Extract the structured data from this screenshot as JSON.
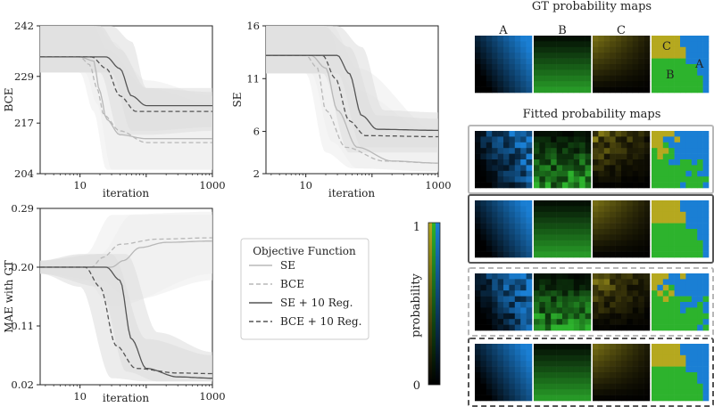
{
  "chart_data": [
    {
      "type": "line",
      "ylabel": "BCE",
      "xlabel": "iteration",
      "xscale": "log",
      "xlim": [
        2.5,
        1000
      ],
      "ylim": [
        204,
        242
      ],
      "yticks": [
        204,
        217,
        229,
        242
      ],
      "xticks": [
        10,
        1000
      ],
      "series": [
        {
          "name": "SE",
          "style": "solid-light",
          "points": [
            [
              2.5,
              234
            ],
            [
              10,
              234
            ],
            [
              16,
              233
            ],
            [
              20,
              225
            ],
            [
              25,
              218
            ],
            [
              40,
              214
            ],
            [
              100,
              213
            ],
            [
              1000,
              213
            ]
          ],
          "band": [
            [
              2.5,
              230,
              242
            ],
            [
              12,
              230,
              242
            ],
            [
              18,
              222,
              242
            ],
            [
              30,
              205,
              238
            ],
            [
              100,
              205,
              228
            ],
            [
              1000,
              205,
              224
            ]
          ]
        },
        {
          "name": "BCE",
          "style": "dashed-light",
          "points": [
            [
              2.5,
              234
            ],
            [
              10,
              234
            ],
            [
              14,
              232
            ],
            [
              18,
              226
            ],
            [
              23,
              219
            ],
            [
              40,
              215
            ],
            [
              100,
              212
            ],
            [
              1000,
              212
            ]
          ],
          "band": [
            [
              2.5,
              230,
              242
            ],
            [
              10,
              230,
              242
            ],
            [
              16,
              220,
              242
            ],
            [
              25,
              205,
              236
            ],
            [
              100,
              205,
              226
            ],
            [
              1000,
              205,
              222
            ]
          ]
        },
        {
          "name": "SE + 10 Reg.",
          "style": "solid-dark",
          "points": [
            [
              2.5,
              234
            ],
            [
              25,
              234
            ],
            [
              40,
              231
            ],
            [
              60,
              224
            ],
            [
              100,
              221.5
            ],
            [
              1000,
              221.5
            ]
          ],
          "band": [
            [
              2.5,
              230,
              242
            ],
            [
              30,
              230,
              242
            ],
            [
              60,
              215,
              238
            ],
            [
              100,
              215,
              226
            ],
            [
              1000,
              216,
              226
            ]
          ]
        },
        {
          "name": "BCE + 10 Reg.",
          "style": "dashed-dark",
          "points": [
            [
              2.5,
              234
            ],
            [
              15,
              234
            ],
            [
              25,
              231
            ],
            [
              40,
              224
            ],
            [
              70,
              220
            ],
            [
              1000,
              220
            ]
          ],
          "band": [
            [
              2.5,
              230,
              242
            ],
            [
              20,
              230,
              242
            ],
            [
              40,
              214,
              236
            ],
            [
              100,
              214,
              226
            ],
            [
              1000,
              215,
              225
            ]
          ]
        }
      ]
    },
    {
      "type": "line",
      "ylabel": "SE",
      "xlabel": "iteration",
      "xscale": "log",
      "xlim": [
        2.5,
        1000
      ],
      "ylim": [
        2,
        16
      ],
      "yticks": [
        2,
        6,
        11,
        16
      ],
      "xticks": [
        10,
        1000
      ],
      "series": [
        {
          "name": "SE",
          "style": "solid-light",
          "points": [
            [
              2.5,
              13.2
            ],
            [
              12,
              13.2
            ],
            [
              20,
              12
            ],
            [
              30,
              8
            ],
            [
              60,
              4.5
            ],
            [
              200,
              3.2
            ],
            [
              1000,
              3
            ]
          ],
          "band": [
            [
              2.5,
              11.5,
              16
            ],
            [
              12,
              11.5,
              16
            ],
            [
              25,
              5,
              16
            ],
            [
              60,
              2.5,
              12
            ],
            [
              1000,
              2.2,
              6
            ]
          ]
        },
        {
          "name": "BCE",
          "style": "dashed-light",
          "points": [
            [
              2.5,
              13.2
            ],
            [
              10,
              13.2
            ],
            [
              15,
              12
            ],
            [
              20,
              8
            ],
            [
              40,
              4.5
            ],
            [
              150,
              3.2
            ],
            [
              1000,
              3
            ]
          ],
          "band": [
            [
              2.5,
              11.5,
              16
            ],
            [
              10,
              11.5,
              16
            ],
            [
              20,
              4,
              16
            ],
            [
              50,
              2.5,
              10
            ],
            [
              1000,
              2.2,
              5.5
            ]
          ]
        },
        {
          "name": "SE + 10 Reg.",
          "style": "solid-dark",
          "points": [
            [
              2.5,
              13.2
            ],
            [
              30,
              13.2
            ],
            [
              45,
              11.5
            ],
            [
              70,
              7.5
            ],
            [
              120,
              6.2
            ],
            [
              1000,
              6.1
            ]
          ],
          "band": [
            [
              2.5,
              11.5,
              16
            ],
            [
              30,
              11.5,
              16
            ],
            [
              70,
              4.5,
              14
            ],
            [
              150,
              4.5,
              8
            ],
            [
              1000,
              4.5,
              7.8
            ]
          ]
        },
        {
          "name": "BCE + 10 Reg.",
          "style": "dashed-dark",
          "points": [
            [
              2.5,
              13.2
            ],
            [
              18,
              13.2
            ],
            [
              28,
              11
            ],
            [
              45,
              7
            ],
            [
              80,
              5.6
            ],
            [
              1000,
              5.5
            ]
          ],
          "band": [
            [
              2.5,
              11.5,
              16
            ],
            [
              18,
              11.5,
              16
            ],
            [
              45,
              4,
              14
            ],
            [
              120,
              4,
              7.5
            ],
            [
              1000,
              4,
              7.2
            ]
          ]
        }
      ]
    },
    {
      "type": "line",
      "ylabel": "MAE with GT",
      "xlabel": "iteration",
      "xscale": "log",
      "xlim": [
        2.5,
        1000
      ],
      "ylim": [
        0.02,
        0.29
      ],
      "yticks": [
        0.02,
        0.11,
        0.2,
        0.29
      ],
      "ytick_labels": [
        "0.02",
        "0.11",
        "0.20",
        "0.29"
      ],
      "xticks": [
        10,
        1000
      ],
      "series": [
        {
          "name": "SE",
          "style": "solid-light",
          "points": [
            [
              2.5,
              0.2
            ],
            [
              30,
              0.2
            ],
            [
              45,
              0.21
            ],
            [
              80,
              0.23
            ],
            [
              200,
              0.238
            ],
            [
              1000,
              0.24
            ]
          ],
          "band": [
            [
              2.5,
              0.19,
              0.21
            ],
            [
              20,
              0.18,
              0.22
            ],
            [
              60,
              0.15,
              0.28
            ],
            [
              1000,
              0.18,
              0.28
            ]
          ]
        },
        {
          "name": "BCE",
          "style": "dashed-light",
          "points": [
            [
              2.5,
              0.2
            ],
            [
              15,
              0.2
            ],
            [
              22,
              0.215
            ],
            [
              40,
              0.235
            ],
            [
              150,
              0.243
            ],
            [
              1000,
              0.245
            ]
          ],
          "band": [
            [
              2.5,
              0.19,
              0.21
            ],
            [
              12,
              0.18,
              0.22
            ],
            [
              30,
              0.14,
              0.28
            ],
            [
              1000,
              0.19,
              0.285
            ]
          ]
        },
        {
          "name": "SE + 10 Reg.",
          "style": "solid-dark",
          "points": [
            [
              2.5,
              0.2
            ],
            [
              25,
              0.2
            ],
            [
              40,
              0.18
            ],
            [
              60,
              0.09
            ],
            [
              100,
              0.045
            ],
            [
              300,
              0.032
            ],
            [
              1000,
              0.03
            ]
          ],
          "band": [
            [
              2.5,
              0.19,
              0.21
            ],
            [
              20,
              0.17,
              0.22
            ],
            [
              50,
              0.04,
              0.22
            ],
            [
              150,
              0.025,
              0.1
            ],
            [
              1000,
              0.025,
              0.07
            ]
          ]
        },
        {
          "name": "BCE + 10 Reg.",
          "style": "dashed-dark",
          "points": [
            [
              2.5,
              0.2
            ],
            [
              12,
              0.2
            ],
            [
              20,
              0.17
            ],
            [
              35,
              0.08
            ],
            [
              70,
              0.045
            ],
            [
              300,
              0.038
            ],
            [
              1000,
              0.037
            ]
          ],
          "band": [
            [
              2.5,
              0.19,
              0.21
            ],
            [
              10,
              0.17,
              0.22
            ],
            [
              30,
              0.03,
              0.22
            ],
            [
              100,
              0.025,
              0.09
            ],
            [
              1000,
              0.025,
              0.065
            ]
          ]
        }
      ]
    }
  ],
  "legend": {
    "title": "Objective Function",
    "entries": [
      {
        "label": "SE",
        "style": "solid-light"
      },
      {
        "label": "BCE",
        "style": "dashed-light"
      },
      {
        "label": "SE + 10 Reg.",
        "style": "solid-dark"
      },
      {
        "label": "BCE + 10 Reg.",
        "style": "dashed-dark"
      }
    ]
  },
  "colorbar": {
    "label": "probability",
    "max_label": "1",
    "min_label": "0",
    "colors": [
      "#1a7fd4",
      "#2db32d",
      "#b5a81f"
    ]
  },
  "maps": {
    "gt_title": "GT probability maps",
    "fitted_title": "Fitted probability maps",
    "column_labels": [
      "A",
      "B",
      "C"
    ],
    "region_labels": [
      "C",
      "B",
      "A"
    ],
    "colors": {
      "A": "#1a7fd4",
      "B": "#2db32d",
      "C": "#b5a81f"
    },
    "rows": [
      {
        "name": "gt",
        "frame": "none",
        "noisy": false
      },
      {
        "name": "SE",
        "frame": "solid-light",
        "noisy": true
      },
      {
        "name": "SE + 10 Reg.",
        "frame": "solid-dark",
        "noisy": false
      },
      {
        "name": "BCE",
        "frame": "dashed-light",
        "noisy": true
      },
      {
        "name": "BCE + 10 Reg.",
        "frame": "dashed-dark",
        "noisy": false
      }
    ]
  }
}
